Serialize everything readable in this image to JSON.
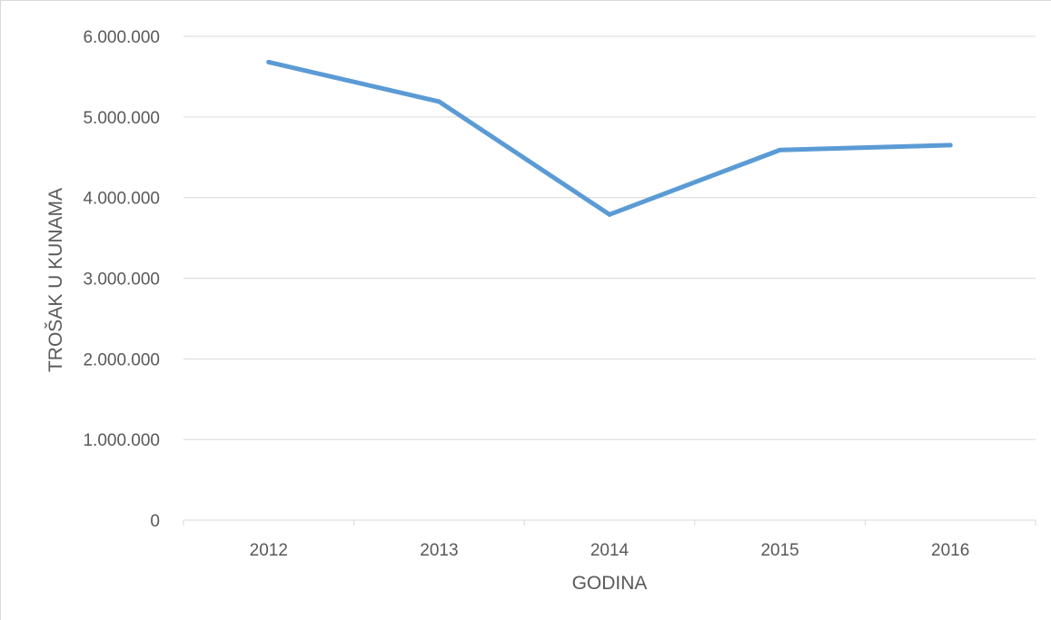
{
  "chart_data": {
    "type": "line",
    "title": "",
    "xlabel": "GODINA",
    "ylabel": "TROŠAK U KUNAMA",
    "categories": [
      "2012",
      "2013",
      "2014",
      "2015",
      "2016"
    ],
    "series": [
      {
        "values": [
          5680000,
          5190000,
          3790000,
          4590000,
          4650000
        ]
      }
    ],
    "ylim": [
      0,
      6000000
    ],
    "yticks": [
      0,
      1000000,
      2000000,
      3000000,
      4000000,
      5000000,
      6000000
    ],
    "ytick_labels": [
      "0",
      "1.000.000",
      "2.000.000",
      "3.000.000",
      "4.000.000",
      "5.000.000",
      "6.000.000"
    ],
    "grid": true,
    "legend": "none",
    "colors": {
      "line": "#5b9bd5",
      "grid": "#d9d9d9",
      "text": "#595959"
    }
  }
}
